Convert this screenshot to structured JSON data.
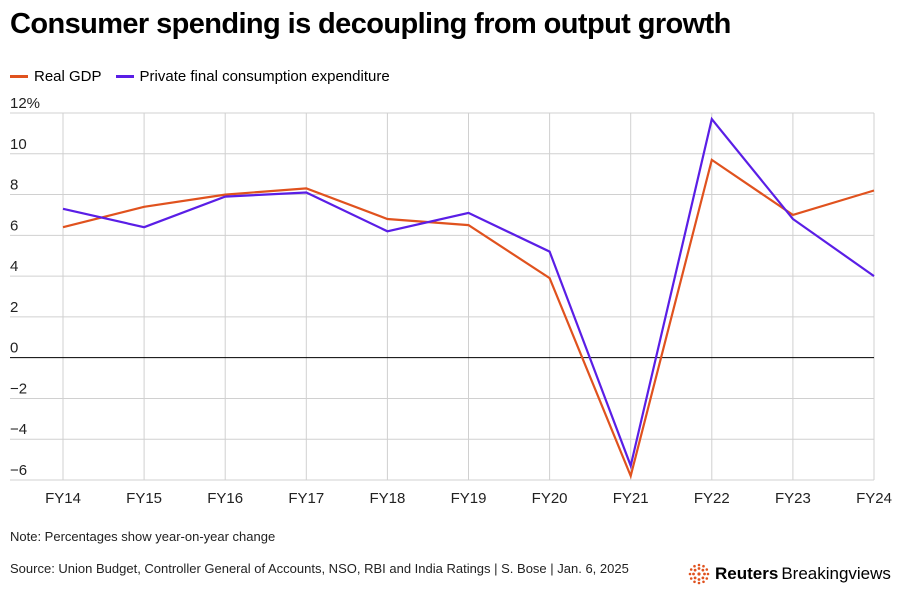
{
  "header": {
    "title": "Consumer spending is decoupling from output growth"
  },
  "footer": {
    "note": "Note: Percentages show year-on-year change",
    "source": "Source: Union Budget, Controller General of Accounts, NSO, RBI and India Ratings | S. Bose | Jan. 6, 2025",
    "brand_bold": "Reuters",
    "brand_light": "Breakingviews"
  },
  "colors": {
    "gdp": "#e0521e",
    "consumption": "#5a1ee6",
    "logo": "#e0521e"
  },
  "chart_data": {
    "type": "line",
    "title": "Consumer spending is decoupling from output growth",
    "xlabel": "",
    "ylabel": "",
    "categories": [
      "FY14",
      "FY15",
      "FY16",
      "FY17",
      "FY18",
      "FY19",
      "FY20",
      "FY21",
      "FY22",
      "FY23",
      "FY24"
    ],
    "series": [
      {
        "name": "Real GDP",
        "values": [
          6.4,
          7.4,
          8.0,
          8.3,
          6.8,
          6.5,
          3.9,
          -5.8,
          9.7,
          7.0,
          8.2
        ]
      },
      {
        "name": "Private final consumption expenditure",
        "values": [
          7.3,
          6.4,
          7.9,
          8.1,
          6.2,
          7.1,
          5.2,
          -5.3,
          11.7,
          6.8,
          4.0
        ]
      }
    ],
    "ylim": [
      -6,
      12
    ],
    "yticks": [
      -6,
      -4,
      -2,
      0,
      2,
      4,
      6,
      8,
      10,
      12
    ],
    "ytick_labels": [
      "−6",
      "−4",
      "−2",
      "0",
      "2",
      "4",
      "6",
      "8",
      "10",
      "12%"
    ],
    "grid": true,
    "legend": "top-left"
  }
}
